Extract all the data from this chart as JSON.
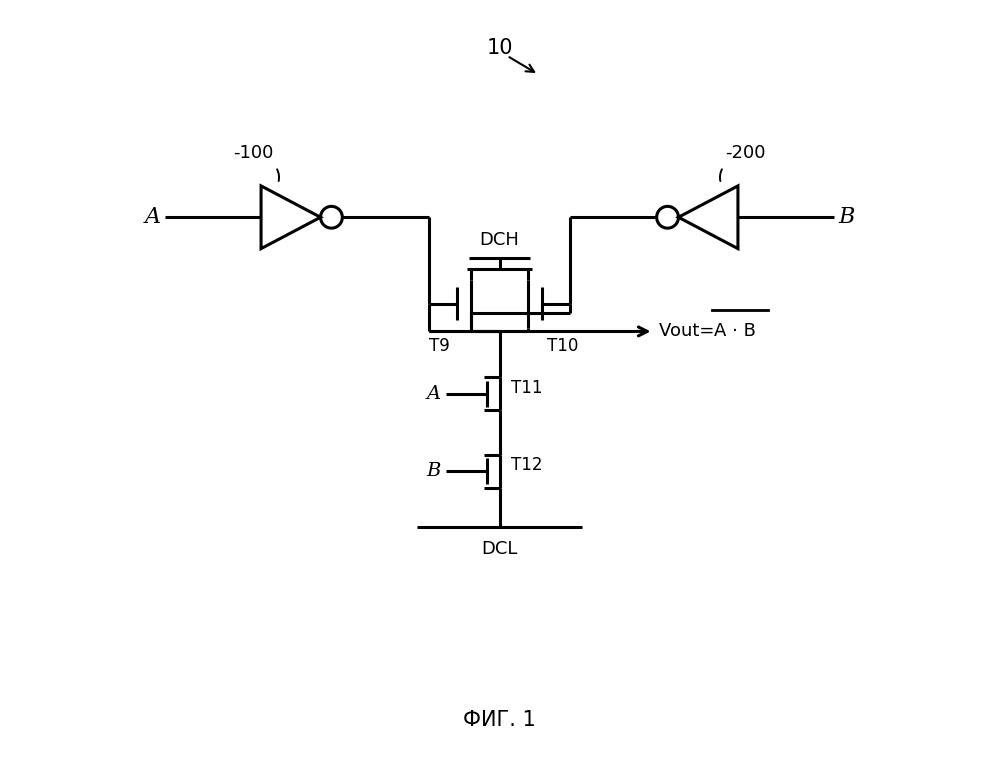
{
  "bg_color": "#ffffff",
  "line_color": "#000000",
  "lw": 2.2,
  "fig_width": 9.99,
  "fig_height": 7.65,
  "label_10": "10",
  "label_100": "-100",
  "label_200": "-200",
  "label_A": "A",
  "label_B": "B",
  "label_DCH": "DCH",
  "label_DCL": "DCL",
  "label_T9": "T9",
  "label_T10": "T10",
  "label_T11": "T11",
  "label_T12": "T12",
  "label_A_gate11": "A",
  "label_B_gate12": "B",
  "label_vout": "Vout= ",
  "label_formula": "A · B",
  "fig_caption": "ФИГ. 1"
}
